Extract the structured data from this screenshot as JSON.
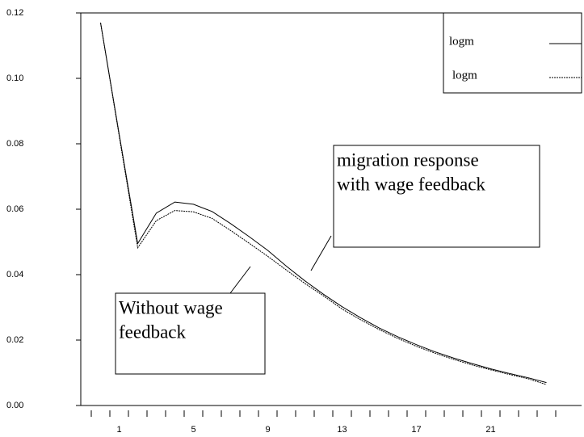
{
  "chart_data": {
    "type": "line",
    "categories": [
      null,
      "1",
      null,
      null,
      null,
      "5",
      null,
      null,
      null,
      "9",
      null,
      null,
      null,
      "13",
      null,
      null,
      null,
      "17",
      null,
      null,
      null,
      "21",
      null,
      null,
      null
    ],
    "series": [
      {
        "name": "logm",
        "color": "#000000",
        "dash": "none",
        "values": [
          0.117,
          0.083,
          0.0495,
          0.0588,
          0.0622,
          0.0615,
          0.0593,
          0.0556,
          0.0516,
          0.0474,
          0.0426,
          0.0381,
          0.034,
          0.0302,
          0.0268,
          0.0237,
          0.021,
          0.0186,
          0.0164,
          0.0145,
          0.0128,
          0.0112,
          0.0098,
          0.0085,
          0.007
        ]
      },
      {
        "name": "logm",
        "color": "#000000",
        "dash": "2,1",
        "values": [
          0.117,
          0.0825,
          0.0482,
          0.0565,
          0.0596,
          0.0592,
          0.0572,
          0.0535,
          0.0496,
          0.0456,
          0.0414,
          0.0373,
          0.0335,
          0.0295,
          0.0262,
          0.0232,
          0.0205,
          0.0181,
          0.016,
          0.0141,
          0.0124,
          0.0109,
          0.0095,
          0.0082,
          0.0064
        ]
      }
    ],
    "ylim": [
      0,
      0.12
    ],
    "yticks": [
      {
        "value": 0,
        "label": "0.00"
      },
      {
        "value": 0.02,
        "label": "0.02"
      },
      {
        "value": 0.04,
        "label": "0.04"
      },
      {
        "value": 0.06,
        "label": "0.06"
      },
      {
        "value": 0.08,
        "label": "0.08"
      },
      {
        "value": 0.1,
        "label": "0.10"
      },
      {
        "value": 0.12,
        "label": "0.12"
      }
    ],
    "legend": "top-right",
    "annotations": [
      {
        "lines": [
          "migration response",
          "with wage feedback"
        ]
      },
      {
        "lines": [
          "Without wage",
          "feedback"
        ]
      }
    ]
  }
}
